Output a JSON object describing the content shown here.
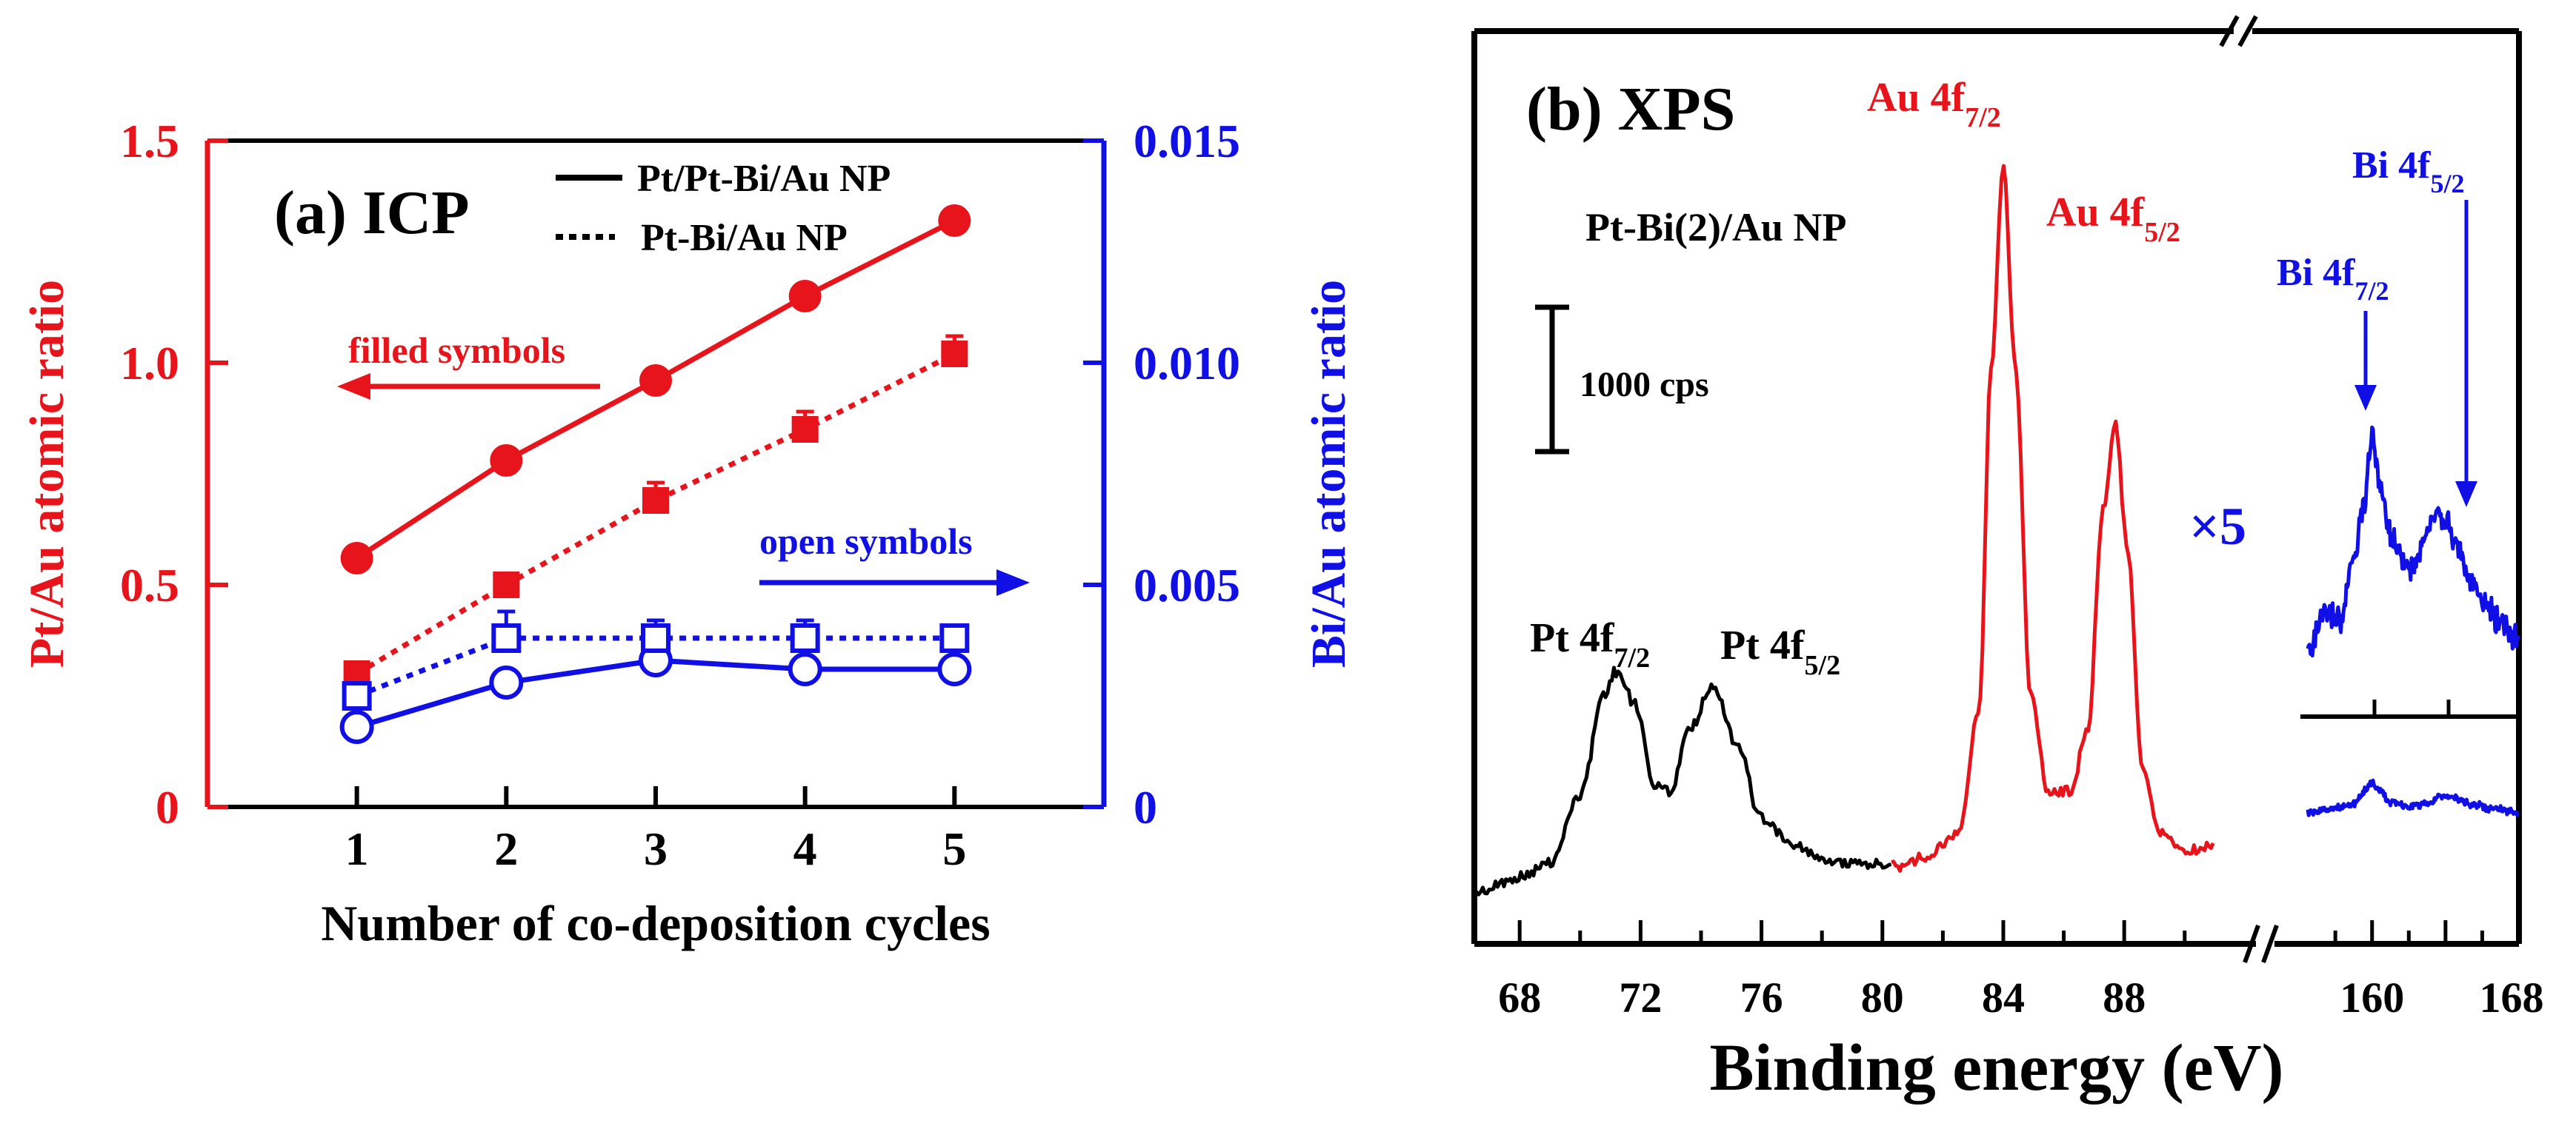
{
  "colors": {
    "red": "#e8141c",
    "blue": "#1010e6",
    "black": "#000000"
  },
  "chart_data": [
    {
      "type": "line",
      "title": "(a) ICP",
      "xlabel": "Number of co-deposition cycles",
      "ylabel_left": "Pt/Au atomic ratio",
      "ylabel_right": "Bi/Au atomic ratio",
      "xlim": [
        0,
        6
      ],
      "ylim_left": [
        0,
        1.5
      ],
      "ylim_right": [
        0,
        0.015
      ],
      "x_ticks": [
        1,
        2,
        3,
        4,
        5
      ],
      "x_tick_labels": [
        "1",
        "2",
        "3",
        "4",
        "5"
      ],
      "y_left_ticks": [
        0,
        0.5,
        1.0,
        1.5
      ],
      "y_left_tick_labels": [
        "0",
        "0.5",
        "1.0",
        "1.5"
      ],
      "y_right_ticks": [
        0,
        0.005,
        0.01,
        0.015
      ],
      "y_right_tick_labels": [
        "0",
        "0.005",
        "0.010",
        "0.015"
      ],
      "legend": [
        {
          "style": "solid",
          "label": "Pt/Pt-Bi/Au NP"
        },
        {
          "style": "dotted",
          "label": "Pt-Bi/Au NP"
        }
      ],
      "annotations": {
        "filled": "filled symbols",
        "open": "open symbols"
      },
      "series": [
        {
          "name": "Pt/Au, Pt/Pt-Bi/Au NP",
          "axis": "left",
          "color": "red",
          "marker": "filled-circle",
          "line": "solid",
          "x": [
            1,
            2,
            3,
            4,
            5
          ],
          "y": [
            0.56,
            0.78,
            0.96,
            1.15,
            1.32
          ],
          "err": [
            0,
            0,
            0,
            0,
            0
          ]
        },
        {
          "name": "Pt/Au, Pt-Bi/Au NP",
          "axis": "left",
          "color": "red",
          "marker": "filled-square",
          "line": "dotted",
          "x": [
            1,
            2,
            3,
            4,
            5
          ],
          "y": [
            0.3,
            0.5,
            0.69,
            0.85,
            1.02
          ],
          "err": [
            0,
            0,
            0.04,
            0.04,
            0.04
          ]
        },
        {
          "name": "Bi/Au, Pt/Pt-Bi/Au NP",
          "axis": "right",
          "color": "blue",
          "marker": "open-circle",
          "line": "solid",
          "x": [
            1,
            2,
            3,
            4,
            5
          ],
          "y": [
            0.0018,
            0.0028,
            0.0033,
            0.0031,
            0.0031
          ],
          "err": [
            0,
            0,
            0,
            0,
            0
          ]
        },
        {
          "name": "Bi/Au, Pt-Bi/Au NP",
          "axis": "right",
          "color": "blue",
          "marker": "open-square",
          "line": "dotted",
          "x": [
            1,
            2,
            3,
            4,
            5
          ],
          "y": [
            0.0025,
            0.0038,
            0.0038,
            0.0038,
            0.0038
          ],
          "err": [
            0,
            0.0006,
            0.0004,
            0.0004,
            0
          ]
        }
      ]
    },
    {
      "type": "line",
      "title": "(b) XPS",
      "sample_label": "Pt-Bi(2)/Au NP",
      "xlabel": "Binding energy (eV)",
      "xlim_left": [
        66.5,
        91.5
      ],
      "xlim_right": [
        156.5,
        168
      ],
      "x_ticks_left": [
        68,
        72,
        76,
        80,
        84,
        88
      ],
      "x_ticks_right": [
        160,
        164,
        168
      ],
      "x_tick_labels": [
        "68",
        "72",
        "76",
        "80",
        "84",
        "88",
        "160",
        "168"
      ],
      "scale_bar": "1000 cps",
      "magnification": "×5",
      "peak_labels": [
        {
          "base": "Pt 4f",
          "sub": "7/2",
          "color": "black"
        },
        {
          "base": "Pt 4f",
          "sub": "5/2",
          "color": "black"
        },
        {
          "base": "Au 4f",
          "sub": "7/2",
          "color": "red"
        },
        {
          "base": "Au 4f",
          "sub": "5/2",
          "color": "red"
        },
        {
          "base": "Bi 4f",
          "sub": "7/2",
          "color": "blue"
        },
        {
          "base": "Bi 4f",
          "sub": "5/2",
          "color": "blue"
        }
      ],
      "spectra": [
        {
          "name": "Pt 4f region",
          "color": "black",
          "x": [
            66.5,
            68,
            69,
            70,
            70.8,
            71.2,
            71.8,
            72.5,
            73,
            73.6,
            74.4,
            75.2,
            76,
            77,
            78,
            79,
            80.3
          ],
          "y": [
            0.05,
            0.09,
            0.13,
            0.32,
            0.6,
            0.66,
            0.57,
            0.34,
            0.33,
            0.5,
            0.62,
            0.46,
            0.25,
            0.18,
            0.14,
            0.13,
            0.13
          ]
        },
        {
          "name": "Au 4f region",
          "color": "red",
          "x": [
            80.3,
            81.5,
            82.5,
            83.2,
            83.6,
            84.0,
            84.4,
            84.9,
            85.5,
            86.2,
            86.8,
            87.3,
            87.7,
            88.1,
            88.6,
            89.2,
            90.0,
            91.0
          ],
          "y": [
            0.12,
            0.15,
            0.21,
            0.55,
            1.5,
            2.05,
            1.5,
            0.6,
            0.33,
            0.33,
            0.5,
            1.1,
            1.35,
            1.0,
            0.4,
            0.21,
            0.16,
            0.18
          ]
        },
        {
          "name": "Bi 4f region (x5)",
          "color": "blue",
          "x": [
            156.5,
            157.5,
            158.3,
            159,
            159.5,
            160,
            160.5,
            161,
            161.7,
            162.3,
            163,
            163.5,
            164,
            164.6,
            165.3,
            166.2,
            167,
            168
          ],
          "y": [
            0.55,
            0.75,
            0.72,
            1.05,
            1.35,
            1.76,
            1.45,
            1.2,
            1.05,
            1.0,
            1.25,
            1.34,
            1.28,
            1.15,
            0.95,
            0.8,
            0.7,
            0.62
          ]
        },
        {
          "name": "Bi 4f region (x1)",
          "color": "blue",
          "x": [
            156.5,
            158,
            159,
            159.6,
            160,
            160.4,
            161,
            162,
            163,
            163.8,
            164.4,
            165.5,
            166.5,
            168
          ],
          "y": [
            0.17,
            0.19,
            0.21,
            0.27,
            0.31,
            0.27,
            0.22,
            0.2,
            0.21,
            0.25,
            0.24,
            0.21,
            0.19,
            0.17
          ]
        }
      ]
    }
  ]
}
